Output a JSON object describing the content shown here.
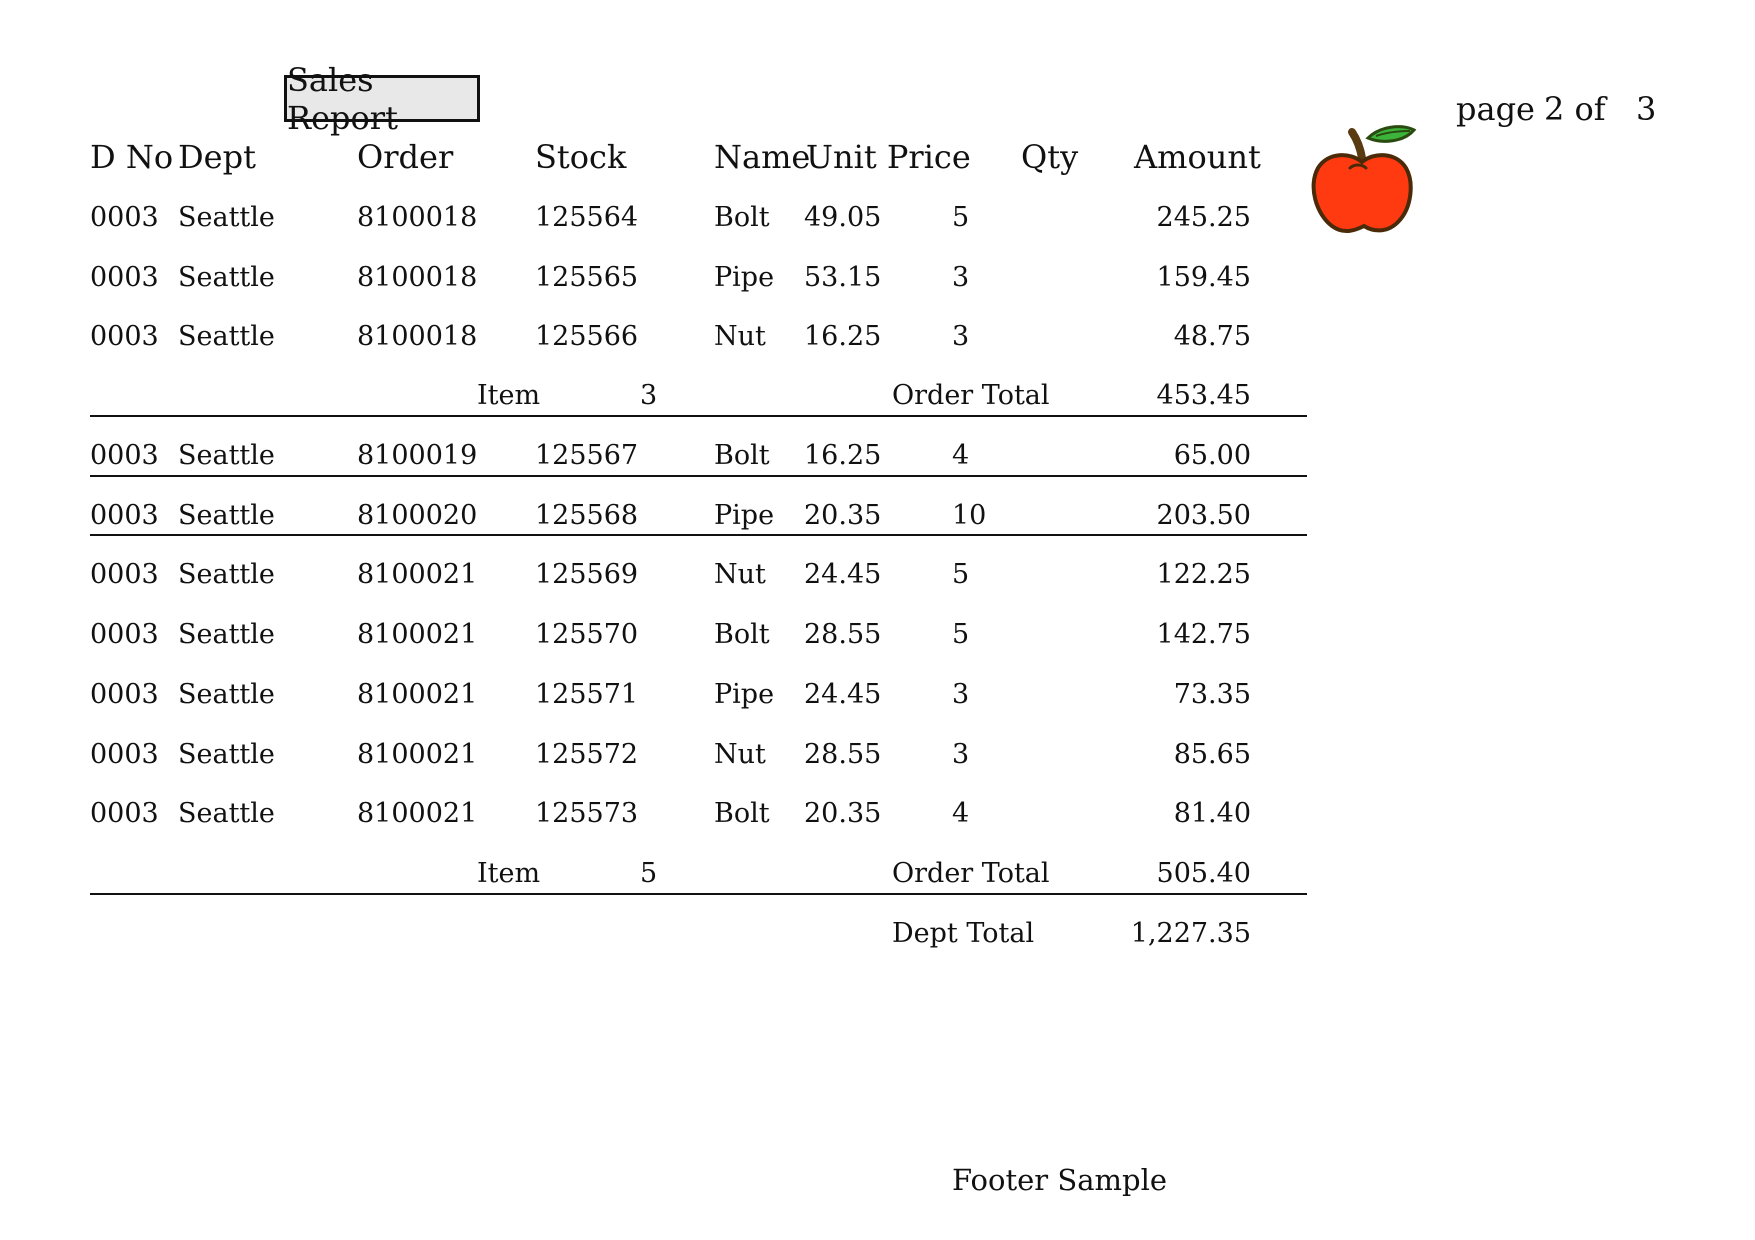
{
  "report": {
    "title": "Sales Report",
    "page_label": "page",
    "page_current": "2 of",
    "page_total": "3",
    "footer": "Footer Sample",
    "logo_icon": "apple-icon"
  },
  "columns": {
    "dno": "D No",
    "dept": "Dept",
    "order": "Order",
    "stock": "Stock",
    "name": "Name",
    "unit_price": "Unit Price",
    "qty": "Qty",
    "amount": "Amount"
  },
  "rows": [
    [
      "0003",
      "Seattle",
      "8100018",
      "125564",
      "Bolt",
      "49.05",
      "5",
      "245.25"
    ],
    [
      "0003",
      "Seattle",
      "8100018",
      "125565",
      "Pipe",
      "53.15",
      "3",
      "159.45"
    ],
    [
      "0003",
      "Seattle",
      "8100018",
      "125566",
      "Nut",
      "16.25",
      "3",
      "48.75"
    ],
    [
      "0003",
      "Seattle",
      "8100019",
      "125567",
      "Bolt",
      "16.25",
      "4",
      "65.00"
    ],
    [
      "0003",
      "Seattle",
      "8100020",
      "125568",
      "Pipe",
      "20.35",
      "10",
      "203.50"
    ],
    [
      "0003",
      "Seattle",
      "8100021",
      "125569",
      "Nut",
      "24.45",
      "5",
      "122.25"
    ],
    [
      "0003",
      "Seattle",
      "8100021",
      "125570",
      "Bolt",
      "28.55",
      "5",
      "142.75"
    ],
    [
      "0003",
      "Seattle",
      "8100021",
      "125571",
      "Pipe",
      "24.45",
      "3",
      "73.35"
    ],
    [
      "0003",
      "Seattle",
      "8100021",
      "125572",
      "Nut",
      "28.55",
      "3",
      "85.65"
    ],
    [
      "0003",
      "Seattle",
      "8100021",
      "125573",
      "Bolt",
      "20.35",
      "4",
      "81.40"
    ]
  ],
  "subtotals": [
    {
      "item_label": "Item",
      "item_count": "3",
      "total_label": "Order Total",
      "total": "453.45"
    },
    {
      "item_label": "Item",
      "item_count": "5",
      "total_label": "Order Total",
      "total": "505.40"
    }
  ],
  "dept_total": {
    "label": "Dept Total",
    "value": "1,227.35"
  }
}
